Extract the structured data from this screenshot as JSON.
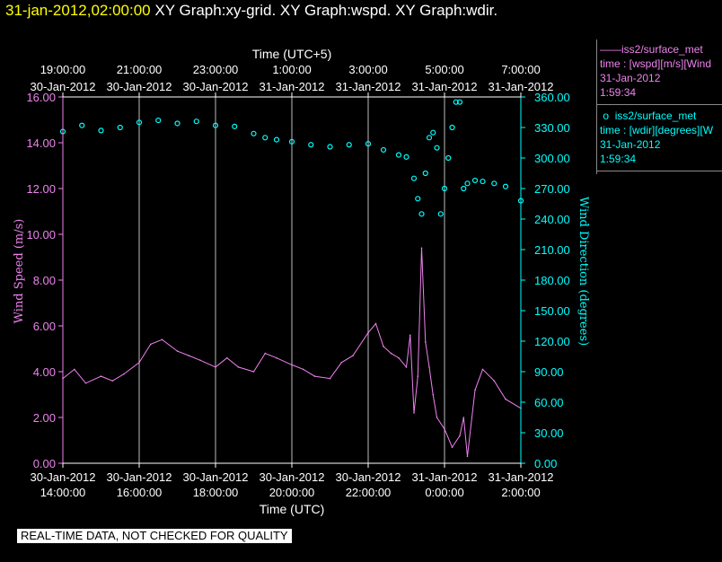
{
  "header": {
    "date": "31-jan-2012,02:00:00",
    "graphs": "XY Graph:xy-grid.  XY Graph:wspd.  XY Graph:wdir."
  },
  "legend": {
    "wspd": {
      "name": "iss2/surface_met",
      "line2": "time : [wspd][m/s][Wind",
      "line3": "31-Jan-2012",
      "line4": "1:59:34",
      "color": "#ee82ee"
    },
    "wdir": {
      "name": "iss2/surface_met",
      "line2": "time : [wdir][degrees][W",
      "line3": "31-Jan-2012",
      "line4": "1:59:34",
      "color": "#00ffff"
    }
  },
  "notice": "REAL-TIME DATA, NOT CHECKED FOR QUALITY",
  "chart_data": {
    "type": "line",
    "title": "",
    "top_axis": {
      "label": "Time (UTC+5)",
      "ticks": [
        {
          "time": "19:00:00",
          "date": "30-Jan-2012"
        },
        {
          "time": "21:00:00",
          "date": "30-Jan-2012"
        },
        {
          "time": "23:00:00",
          "date": "30-Jan-2012"
        },
        {
          "time": "1:00:00",
          "date": "31-Jan-2012"
        },
        {
          "time": "3:00:00",
          "date": "31-Jan-2012"
        },
        {
          "time": "5:00:00",
          "date": "31-Jan-2012"
        },
        {
          "time": "7:00:00",
          "date": "31-Jan-2012"
        }
      ]
    },
    "bottom_axis": {
      "label": "Time (UTC)",
      "ticks": [
        {
          "time": "14:00:00",
          "date": "30-Jan-2012"
        },
        {
          "time": "16:00:00",
          "date": "30-Jan-2012"
        },
        {
          "time": "18:00:00",
          "date": "30-Jan-2012"
        },
        {
          "time": "20:00:00",
          "date": "30-Jan-2012"
        },
        {
          "time": "22:00:00",
          "date": "30-Jan-2012"
        },
        {
          "time": "0:00:00",
          "date": "31-Jan-2012"
        },
        {
          "time": "2:00:00",
          "date": "31-Jan-2012"
        }
      ],
      "range": [
        "30-Jan-2012 14:00:00",
        "31-Jan-2012 02:00:00"
      ]
    },
    "left_axis": {
      "label": "Wind Speed (m/s)",
      "ylim": [
        0,
        16
      ],
      "ticks": [
        "0.00",
        "2.00",
        "4.00",
        "6.00",
        "8.00",
        "10.00",
        "12.00",
        "14.00",
        "16.00"
      ],
      "color": "#ee82ee"
    },
    "right_axis": {
      "label": "Wind Direction (degrees)",
      "ylim": [
        0,
        360
      ],
      "ticks": [
        "0.00",
        "30.00",
        "60.00",
        "90.00",
        "120.00",
        "150.00",
        "180.00",
        "210.00",
        "240.00",
        "270.00",
        "300.00",
        "330.00",
        "360.00"
      ],
      "color": "#00ffff"
    },
    "grid": "vertical lines at bottom-axis ticks",
    "series": [
      {
        "name": "iss2/surface_met [wspd]",
        "style": "line",
        "axis": "left",
        "x_unit": "30-Jan-2012 hour (UTC)",
        "x": [
          14.0,
          14.3,
          14.6,
          15.0,
          15.3,
          15.6,
          16.0,
          16.3,
          16.6,
          17.0,
          17.3,
          17.6,
          18.0,
          18.3,
          18.6,
          19.0,
          19.3,
          19.6,
          20.0,
          20.3,
          20.6,
          21.0,
          21.3,
          21.6,
          22.0,
          22.2,
          22.4,
          22.6,
          22.8,
          23.0,
          23.1,
          23.2,
          23.3,
          23.4,
          23.5,
          23.6,
          23.7,
          23.8,
          24.0,
          24.2,
          24.4,
          24.5,
          24.6,
          24.8,
          25.0,
          25.3,
          25.6,
          26.0
        ],
        "values": [
          3.7,
          4.1,
          3.5,
          3.8,
          3.6,
          3.9,
          4.4,
          5.2,
          5.4,
          4.9,
          4.7,
          4.5,
          4.2,
          4.6,
          4.2,
          4.0,
          4.8,
          4.6,
          4.3,
          4.1,
          3.8,
          3.7,
          4.4,
          4.7,
          5.7,
          6.1,
          5.1,
          4.8,
          4.6,
          4.2,
          5.6,
          2.2,
          3.8,
          9.4,
          5.3,
          4.2,
          3.0,
          2.0,
          1.5,
          0.7,
          1.2,
          2.0,
          0.3,
          3.2,
          4.1,
          3.6,
          2.8,
          2.4
        ]
      },
      {
        "name": "iss2/surface_met [wdir]",
        "style": "scatter",
        "axis": "right",
        "x_unit": "30-Jan-2012 hour (UTC)",
        "x": [
          14.0,
          14.5,
          15.0,
          15.5,
          16.0,
          16.5,
          17.0,
          17.5,
          18.0,
          18.5,
          19.0,
          19.3,
          19.6,
          20.0,
          20.5,
          21.0,
          21.5,
          22.0,
          22.4,
          22.8,
          23.0,
          23.2,
          23.3,
          23.4,
          23.5,
          23.6,
          23.7,
          23.8,
          23.9,
          24.0,
          24.1,
          24.2,
          24.3,
          24.4,
          24.5,
          24.6,
          24.8,
          25.0,
          25.3,
          25.6,
          26.0
        ],
        "values": [
          326,
          332,
          327,
          330,
          335,
          337,
          334,
          336,
          332,
          331,
          324,
          320,
          318,
          316,
          313,
          311,
          313,
          314,
          308,
          303,
          301,
          280,
          260,
          245,
          285,
          320,
          325,
          310,
          245,
          270,
          300,
          330,
          355,
          355,
          270,
          275,
          278,
          277,
          275,
          272,
          258
        ]
      }
    ]
  }
}
